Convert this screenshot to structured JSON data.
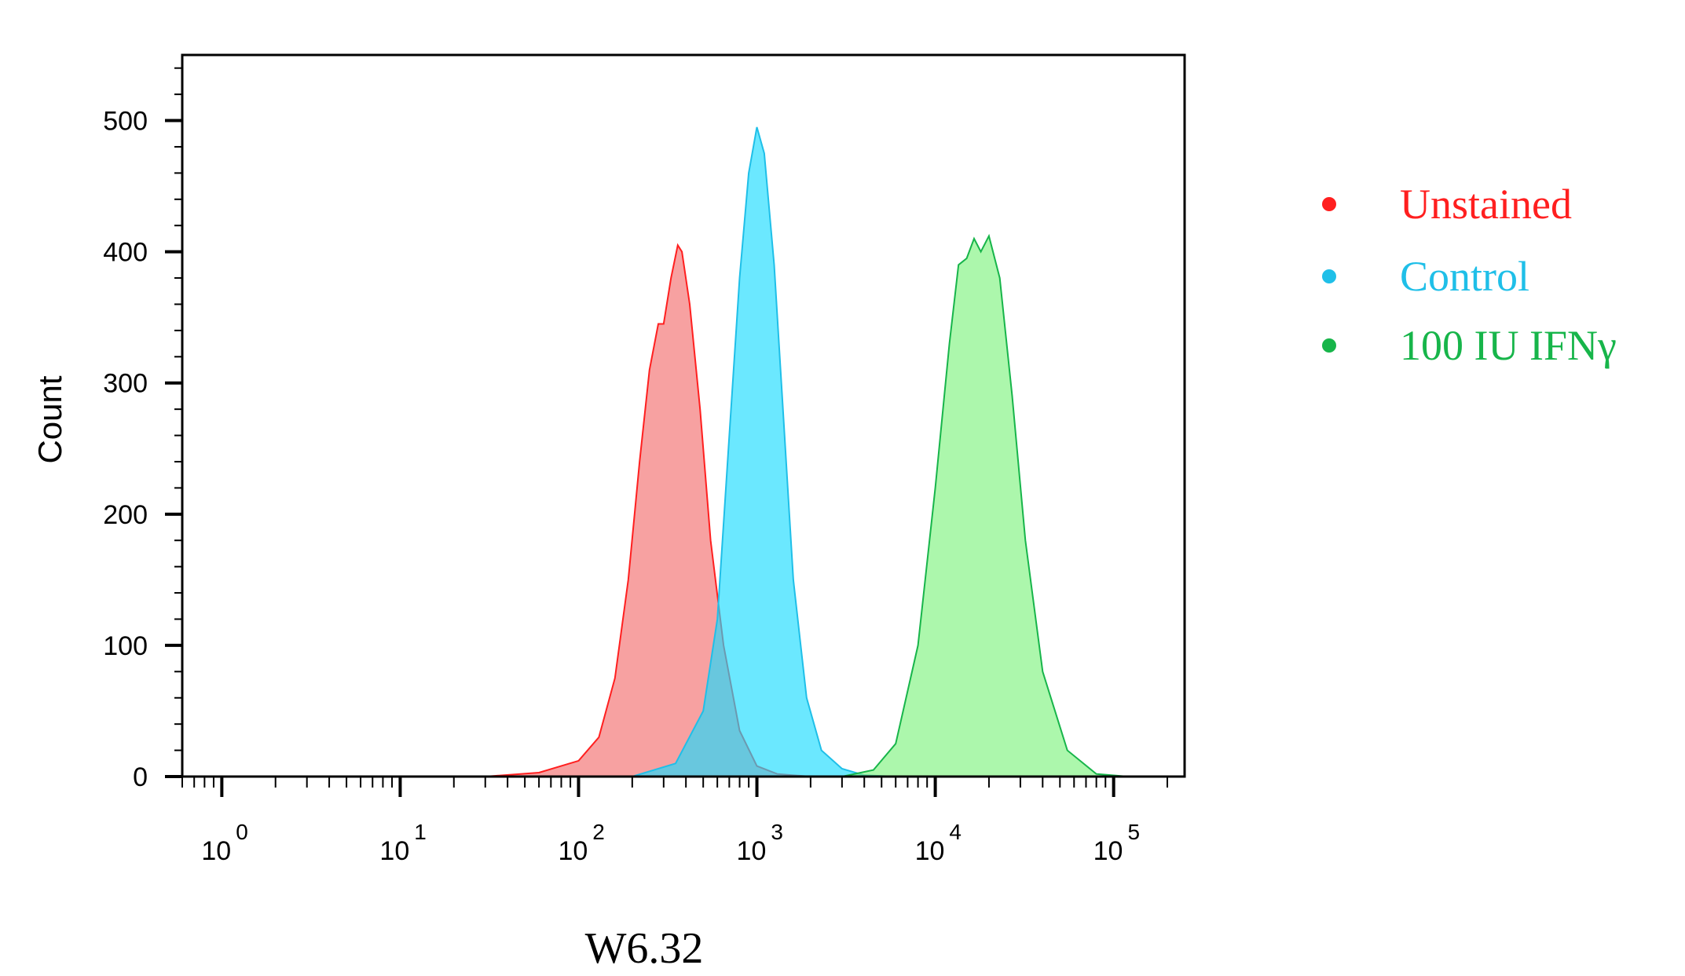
{
  "chart_data": {
    "type": "area",
    "title": "",
    "xlabel": "W6.32",
    "ylabel": "Count",
    "xscale": "log",
    "xlim": [
      0.6,
      250000
    ],
    "ylim": [
      0,
      550
    ],
    "grid": false,
    "legend_position": "right",
    "x_ticks": [
      {
        "base": "10",
        "exp": "0",
        "value": 1
      },
      {
        "base": "10",
        "exp": "1",
        "value": 10
      },
      {
        "base": "10",
        "exp": "2",
        "value": 100
      },
      {
        "base": "10",
        "exp": "3",
        "value": 1000
      },
      {
        "base": "10",
        "exp": "4",
        "value": 10000
      },
      {
        "base": "10",
        "exp": "5",
        "value": 100000
      }
    ],
    "y_ticks": [
      "0",
      "100",
      "200",
      "300",
      "400",
      "500"
    ],
    "series": [
      {
        "name": "Unstained",
        "color": "#ff1f1f",
        "fill": "#f26f6f",
        "points": [
          [
            0.6,
            0
          ],
          [
            30,
            0
          ],
          [
            60,
            3
          ],
          [
            100,
            12
          ],
          [
            130,
            30
          ],
          [
            160,
            75
          ],
          [
            190,
            150
          ],
          [
            220,
            240
          ],
          [
            250,
            310
          ],
          [
            280,
            345
          ],
          [
            300,
            345
          ],
          [
            330,
            380
          ],
          [
            360,
            405
          ],
          [
            380,
            400
          ],
          [
            420,
            360
          ],
          [
            480,
            280
          ],
          [
            550,
            180
          ],
          [
            650,
            100
          ],
          [
            800,
            35
          ],
          [
            1000,
            8
          ],
          [
            1300,
            2
          ],
          [
            2000,
            0
          ],
          [
            250000,
            0
          ]
        ]
      },
      {
        "name": "Control",
        "color": "#1fbfe8",
        "fill": "#1cdcff",
        "points": [
          [
            0.6,
            0
          ],
          [
            200,
            0
          ],
          [
            350,
            10
          ],
          [
            500,
            50
          ],
          [
            600,
            120
          ],
          [
            700,
            260
          ],
          [
            800,
            380
          ],
          [
            900,
            460
          ],
          [
            1000,
            495
          ],
          [
            1100,
            475
          ],
          [
            1250,
            390
          ],
          [
            1400,
            280
          ],
          [
            1600,
            150
          ],
          [
            1900,
            60
          ],
          [
            2300,
            20
          ],
          [
            3000,
            6
          ],
          [
            4000,
            1
          ],
          [
            6000,
            0
          ],
          [
            250000,
            0
          ]
        ]
      },
      {
        "name": "100 IU IFNγ",
        "color": "#17b54a",
        "fill": "#7ff27f",
        "points": [
          [
            0.6,
            0
          ],
          [
            3000,
            0
          ],
          [
            4500,
            5
          ],
          [
            6000,
            25
          ],
          [
            8000,
            100
          ],
          [
            10000,
            220
          ],
          [
            12000,
            330
          ],
          [
            13500,
            390
          ],
          [
            15000,
            395
          ],
          [
            16500,
            410
          ],
          [
            18000,
            400
          ],
          [
            20000,
            412
          ],
          [
            23000,
            380
          ],
          [
            27000,
            290
          ],
          [
            32000,
            180
          ],
          [
            40000,
            80
          ],
          [
            55000,
            20
          ],
          [
            80000,
            2
          ],
          [
            120000,
            0
          ],
          [
            250000,
            0
          ]
        ]
      }
    ]
  }
}
